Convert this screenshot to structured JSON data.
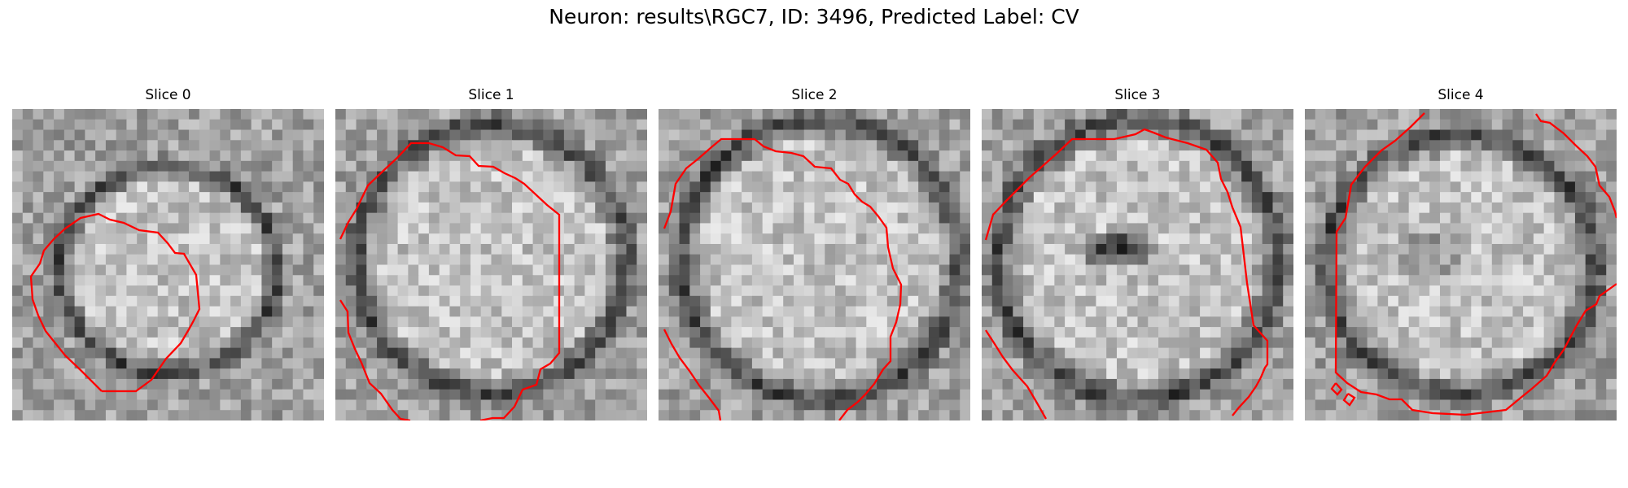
{
  "figure": {
    "title": "Neuron: results\\RGC7, ID: 3496, Predicted Label: CV"
  },
  "panels": [
    {
      "title": "Slice 0"
    },
    {
      "title": "Slice 1"
    },
    {
      "title": "Slice 2"
    },
    {
      "title": "Slice 3"
    },
    {
      "title": "Slice 4"
    }
  ],
  "colors": {
    "contour": "#ff0000",
    "background": "#ffffff"
  }
}
